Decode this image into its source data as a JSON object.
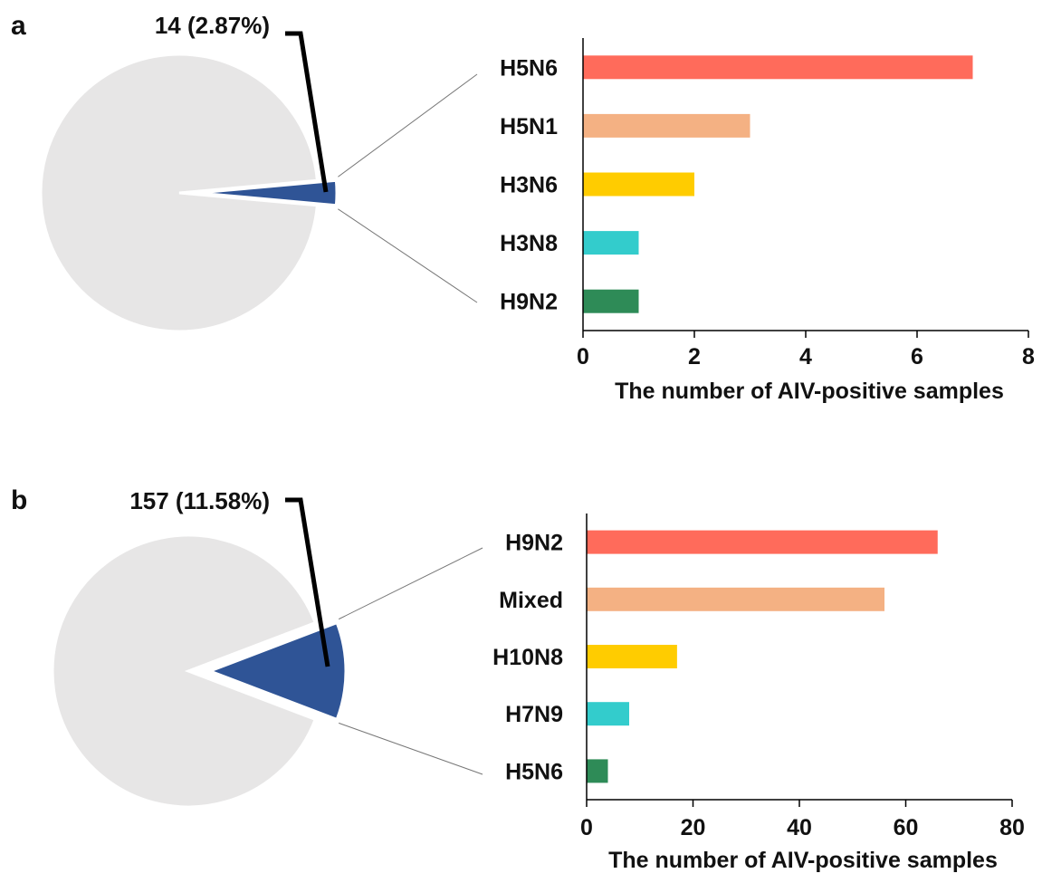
{
  "chart_data": [
    {
      "panel": "a",
      "type": "pie",
      "callout": "14 (2.87%)",
      "slices": [
        {
          "value": 2.87,
          "color": "#2f5496"
        },
        {
          "value": 97.13,
          "color": "#e7e6e6"
        }
      ],
      "bar": {
        "type": "bar",
        "orientation": "horizontal",
        "categories": [
          "H5N6",
          "H5N1",
          "H3N6",
          "H3N8",
          "H9N2"
        ],
        "values": [
          7,
          3,
          2,
          1,
          1
        ],
        "colors": [
          "#ff6b5b",
          "#f4b183",
          "#ffcc00",
          "#33cccc",
          "#2e8b57"
        ],
        "xlabel": "The number of AIV-positive samples",
        "xlim": [
          0,
          8
        ],
        "xticks": [
          0,
          2,
          4,
          6,
          8
        ]
      }
    },
    {
      "panel": "b",
      "type": "pie",
      "callout": "157 (11.58%)",
      "slices": [
        {
          "value": 11.58,
          "color": "#2f5496"
        },
        {
          "value": 88.42,
          "color": "#e7e6e6"
        }
      ],
      "bar": {
        "type": "bar",
        "orientation": "horizontal",
        "categories": [
          "H9N2",
          "Mixed",
          "H10N8",
          "H7N9",
          "H5N6"
        ],
        "values": [
          66,
          56,
          17,
          8,
          4
        ],
        "colors": [
          "#ff6b5b",
          "#f4b183",
          "#ffcc00",
          "#33cccc",
          "#2e8b57"
        ],
        "xlabel": "The number of AIV-positive samples",
        "xlim": [
          0,
          80
        ],
        "xticks": [
          0,
          20,
          40,
          60,
          80
        ]
      }
    }
  ]
}
